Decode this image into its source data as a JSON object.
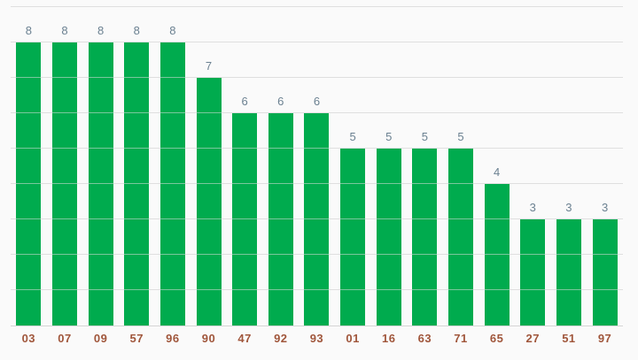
{
  "chart_data": {
    "type": "bar",
    "categories": [
      "03",
      "07",
      "09",
      "57",
      "96",
      "90",
      "47",
      "92",
      "93",
      "01",
      "16",
      "63",
      "71",
      "65",
      "27",
      "51",
      "97"
    ],
    "values": [
      8,
      8,
      8,
      8,
      8,
      7,
      6,
      6,
      6,
      5,
      5,
      5,
      5,
      4,
      3,
      3,
      3
    ],
    "title": "",
    "xlabel": "",
    "ylabel": "",
    "ylim": [
      0,
      9
    ],
    "grid_step": 1,
    "grid": true,
    "legend": "none",
    "value_labels_shown": true,
    "colors": {
      "bar": "#00ab4e",
      "background": "#fafafa",
      "gridline": "#e0e0e0",
      "axis_line": "#d5d5d5",
      "value_label": "#6b8191",
      "category_label": "#a0563b"
    }
  }
}
